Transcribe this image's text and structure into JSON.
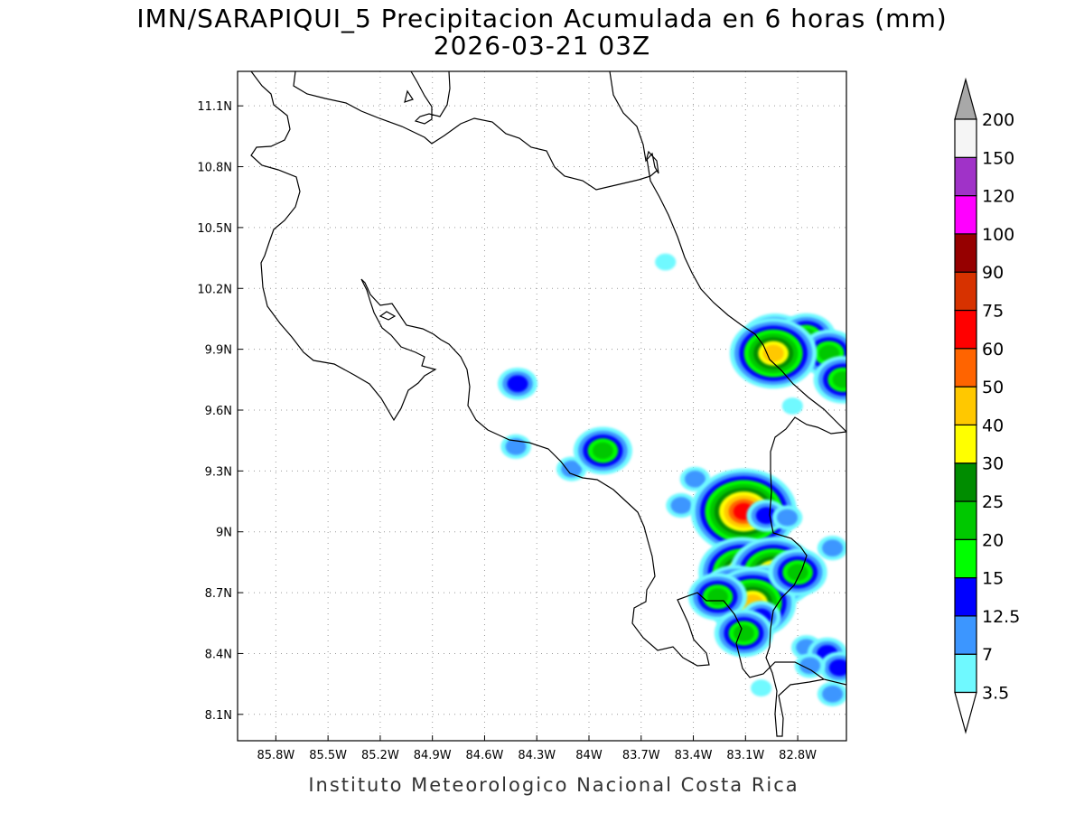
{
  "title": {
    "line1": "IMN/SARAPIQUI_5 Precipitacion Acumulada en 6 horas (mm)",
    "line2": "2026-03-21 03Z"
  },
  "credit": "Instituto Meteorologico Nacional Costa Rica",
  "map": {
    "lon_range": [
      -86.02,
      -82.52
    ],
    "lat_range": [
      7.97,
      11.27
    ],
    "lon_ticks": [
      {
        "value": -85.8,
        "label": "85.8W"
      },
      {
        "value": -85.5,
        "label": "85.5W"
      },
      {
        "value": -85.2,
        "label": "85.2W"
      },
      {
        "value": -84.9,
        "label": "84.9W"
      },
      {
        "value": -84.6,
        "label": "84.6W"
      },
      {
        "value": -84.3,
        "label": "84.3W"
      },
      {
        "value": -84.0,
        "label": "84W"
      },
      {
        "value": -83.7,
        "label": "83.7W"
      },
      {
        "value": -83.4,
        "label": "83.4W"
      },
      {
        "value": -83.1,
        "label": "83.1W"
      },
      {
        "value": -82.8,
        "label": "82.8W"
      }
    ],
    "lat_ticks": [
      {
        "value": 11.1,
        "label": "11.1N"
      },
      {
        "value": 10.8,
        "label": "10.8N"
      },
      {
        "value": 10.5,
        "label": "10.5N"
      },
      {
        "value": 10.2,
        "label": "10.2N"
      },
      {
        "value": 9.9,
        "label": "9.9N"
      },
      {
        "value": 9.6,
        "label": "9.6N"
      },
      {
        "value": 9.3,
        "label": "9.3N"
      },
      {
        "value": 9.0,
        "label": "9N"
      },
      {
        "value": 8.7,
        "label": "8.7N"
      },
      {
        "value": 8.4,
        "label": "8.4N"
      },
      {
        "value": 8.1,
        "label": "8.1N"
      }
    ],
    "grid": true
  },
  "colorbar": {
    "labels": [
      "3.5",
      "7",
      "12.5",
      "15",
      "20",
      "25",
      "30",
      "40",
      "50",
      "60",
      "75",
      "90",
      "100",
      "120",
      "150",
      "200"
    ],
    "colors": [
      "#6ff9ff",
      "#3c96ff",
      "#0000ff",
      "#00ff00",
      "#00c800",
      "#008c00",
      "#ffff00",
      "#ffc800",
      "#ff6400",
      "#ff0000",
      "#d73200",
      "#960000",
      "#ff00ff",
      "#a032c8",
      "#f5f5f5"
    ],
    "below_color": "#ffffff",
    "above_color": "#a8a8a8"
  },
  "precip_cells": [
    {
      "lon": -83.56,
      "lat": 10.33,
      "value": 3.5
    },
    {
      "lon": -84.41,
      "lat": 9.73,
      "value": 12.5
    },
    {
      "lon": -84.42,
      "lat": 9.42,
      "value": 7
    },
    {
      "lon": -84.1,
      "lat": 9.31,
      "value": 7
    },
    {
      "lon": -83.92,
      "lat": 9.4,
      "value": 20
    },
    {
      "lon": -83.39,
      "lat": 9.26,
      "value": 7
    },
    {
      "lon": -83.47,
      "lat": 9.13,
      "value": 7
    },
    {
      "lon": -82.93,
      "lat": 9.94,
      "value": 25
    },
    {
      "lon": -82.75,
      "lat": 9.96,
      "value": 20
    },
    {
      "lon": -82.62,
      "lat": 9.88,
      "value": 20
    },
    {
      "lon": -82.94,
      "lat": 9.88,
      "value": 40
    },
    {
      "lon": -82.54,
      "lat": 9.75,
      "value": 20
    },
    {
      "lon": -82.83,
      "lat": 9.62,
      "value": 3.5
    },
    {
      "lon": -83.11,
      "lat": 9.1,
      "value": 60
    },
    {
      "lon": -82.98,
      "lat": 9.08,
      "value": 12.5
    },
    {
      "lon": -82.86,
      "lat": 9.07,
      "value": 7
    },
    {
      "lon": -82.6,
      "lat": 8.92,
      "value": 7
    },
    {
      "lon": -83.12,
      "lat": 8.8,
      "value": 40
    },
    {
      "lon": -82.94,
      "lat": 8.8,
      "value": 40
    },
    {
      "lon": -82.98,
      "lat": 8.72,
      "value": 20
    },
    {
      "lon": -83.16,
      "lat": 8.7,
      "value": 25
    },
    {
      "lon": -83.06,
      "lat": 8.65,
      "value": 40
    },
    {
      "lon": -83.26,
      "lat": 8.68,
      "value": 20
    },
    {
      "lon": -82.8,
      "lat": 8.8,
      "value": 20
    },
    {
      "lon": -83.01,
      "lat": 8.58,
      "value": 12.5
    },
    {
      "lon": -83.11,
      "lat": 8.5,
      "value": 20
    },
    {
      "lon": -82.75,
      "lat": 8.43,
      "value": 7
    },
    {
      "lon": -82.63,
      "lat": 8.4,
      "value": 12.5
    },
    {
      "lon": -82.56,
      "lat": 8.33,
      "value": 12.5
    },
    {
      "lon": -82.6,
      "lat": 8.2,
      "value": 7
    },
    {
      "lon": -82.73,
      "lat": 8.34,
      "value": 7
    },
    {
      "lon": -83.01,
      "lat": 8.23,
      "value": 3.5
    }
  ]
}
